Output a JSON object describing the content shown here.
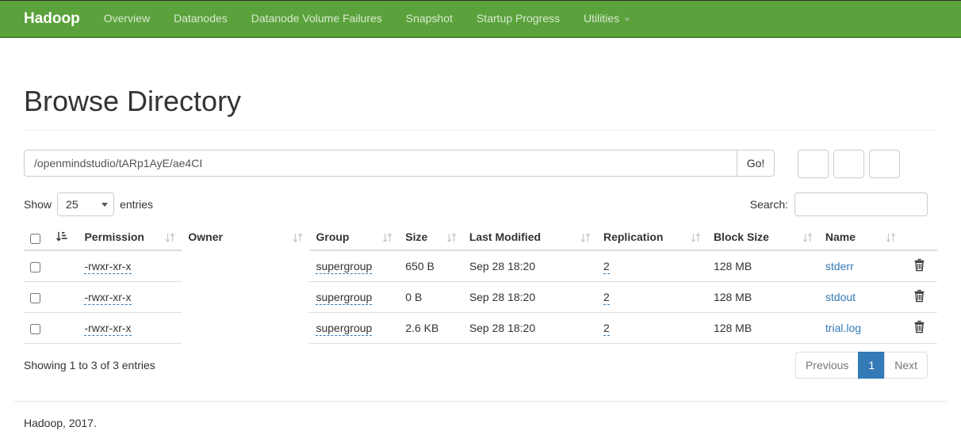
{
  "navbar": {
    "brand": "Hadoop",
    "items": [
      {
        "label": "Overview"
      },
      {
        "label": "Datanodes"
      },
      {
        "label": "Datanode Volume Failures"
      },
      {
        "label": "Snapshot"
      },
      {
        "label": "Startup Progress"
      },
      {
        "label": "Utilities",
        "caret": true,
        "caret_icon": "caret-down"
      }
    ]
  },
  "page": {
    "title": "Browse Directory"
  },
  "path_bar": {
    "value": "/openmindstudio/tARp1AyE/ae4CI",
    "go_label": "Go!",
    "buttons": [
      {
        "icon": "folder-open"
      },
      {
        "icon": "upload"
      },
      {
        "icon": "list-alt"
      }
    ]
  },
  "controls": {
    "show_label": "Show",
    "page_size": "25",
    "entries_label": "entries",
    "search_label": "Search:",
    "search_value": ""
  },
  "table": {
    "columns": [
      {
        "key": "select",
        "label": "",
        "type": "checkbox"
      },
      {
        "key": "sorticon",
        "label": "",
        "type": "sorted",
        "icon": "sort-by-attributes"
      },
      {
        "key": "permission",
        "label": "Permission",
        "sortable": true,
        "editable": true
      },
      {
        "key": "owner",
        "label": "Owner",
        "sortable": true
      },
      {
        "key": "group",
        "label": "Group",
        "sortable": true,
        "editable": true
      },
      {
        "key": "size",
        "label": "Size",
        "sortable": true
      },
      {
        "key": "last_modified",
        "label": "Last Modified",
        "sortable": true
      },
      {
        "key": "replication",
        "label": "Replication",
        "sortable": true,
        "editable": true
      },
      {
        "key": "block_size",
        "label": "Block Size",
        "sortable": true
      },
      {
        "key": "name",
        "label": "Name",
        "sortable": true,
        "link": true
      },
      {
        "key": "actions",
        "label": "",
        "type": "trash",
        "icon": "trash"
      }
    ],
    "rows": [
      {
        "permission": "-rwxr-xr-x",
        "owner": "",
        "group": "supergroup",
        "size": "650 B",
        "last_modified": "Sep 28 18:20",
        "replication": "2",
        "block_size": "128 MB",
        "name": "stderr"
      },
      {
        "permission": "-rwxr-xr-x",
        "owner": "",
        "group": "supergroup",
        "size": "0 B",
        "last_modified": "Sep 28 18:20",
        "replication": "2",
        "block_size": "128 MB",
        "name": "stdout"
      },
      {
        "permission": "-rwxr-xr-x",
        "owner": "",
        "group": "supergroup",
        "size": "2.6 KB",
        "last_modified": "Sep 28 18:20",
        "replication": "2",
        "block_size": "128 MB",
        "name": "trial.log"
      }
    ],
    "summary": "Showing 1 to 3 of 3 entries"
  },
  "pagination": {
    "previous": "Previous",
    "current_page": "1",
    "next": "Next"
  },
  "footer": {
    "text": "Hadoop, 2017."
  },
  "colors": {
    "navbar_green": "#5ba23c",
    "navbar_border": "#47842c",
    "link_blue": "#337ab7",
    "active_page_bg": "#337ab7"
  }
}
